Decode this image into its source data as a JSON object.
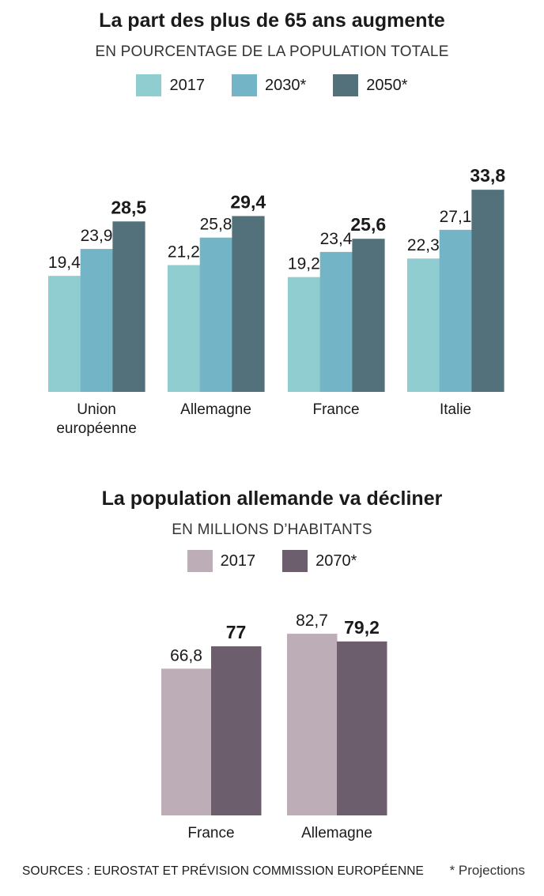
{
  "colors": {
    "y2017_a": "#90cdd1",
    "y2030": "#74b4c7",
    "y2050": "#53717b",
    "y2017_b": "#bcadb7",
    "y2070": "#6d5e6e"
  },
  "footer": {
    "sources": "SOURCES : EUROSTAT ET PRÉVISION COMMISSION EUROPÉENNE",
    "note": "* Projections"
  },
  "chart_data": [
    {
      "type": "bar",
      "title": "La part des plus de 65 ans augmente",
      "subtitle": "EN POURCENTAGE DE LA POPULATION TOTALE",
      "categories": [
        [
          "Union",
          "européenne"
        ],
        [
          "Allemagne"
        ],
        [
          "France"
        ],
        [
          "Italie"
        ]
      ],
      "series": [
        {
          "name": "2017",
          "values": [
            19.4,
            21.2,
            19.2,
            22.3
          ],
          "labels": [
            "19,4",
            "21,2",
            "19,2",
            "22,3"
          ]
        },
        {
          "name": "2030*",
          "values": [
            23.9,
            25.8,
            23.4,
            27.1
          ],
          "labels": [
            "23,9",
            "25,8",
            "23,4",
            "27,1"
          ]
        },
        {
          "name": "2050*",
          "values": [
            28.5,
            29.4,
            25.6,
            33.8
          ],
          "labels": [
            "28,5",
            "29,4",
            "25,6",
            "33,8"
          ]
        }
      ],
      "legend": "top-center",
      "grid": false
    },
    {
      "type": "bar",
      "title": "La population allemande va décliner",
      "subtitle": "EN MILLIONS D’HABITANTS",
      "categories": [
        [
          "France"
        ],
        [
          "Allemagne"
        ]
      ],
      "series": [
        {
          "name": "2017",
          "values": [
            66.8,
            82.7
          ],
          "labels": [
            "66,8",
            "82,7"
          ]
        },
        {
          "name": "2070*",
          "values": [
            77,
            79.2
          ],
          "labels": [
            "77",
            "79,2"
          ]
        }
      ],
      "legend": "top-center",
      "grid": false
    }
  ]
}
